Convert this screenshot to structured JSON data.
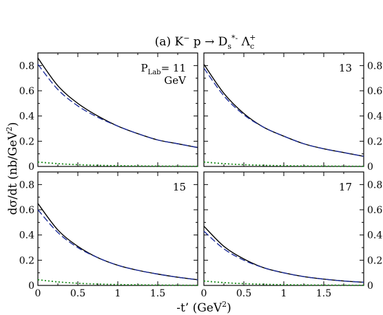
{
  "chart_data": {
    "type": "line",
    "title": {
      "prefix": "(a) K",
      "sup1": "−",
      "mid": " p → D",
      "sub1": "s",
      "sup2": "*-",
      "mid2": " Λ",
      "sub2": "c",
      "sup3": "+"
    },
    "xlabel": {
      "main": "-t’ (GeV",
      "sup": "2",
      "close": ")"
    },
    "ylabel": {
      "main": "dσ/dt (nb/GeV",
      "sup": "2",
      "close": ")"
    },
    "xlim": [
      0,
      2
    ],
    "ylim": [
      0,
      0.9
    ],
    "x_ticks": [
      0,
      0.5,
      1,
      1.5
    ],
    "x_tick_labels": [
      "0",
      "0.5",
      "1",
      "1.5"
    ],
    "y_ticks": [
      0,
      0.2,
      0.4,
      0.6,
      0.8
    ],
    "y_tick_labels": [
      "0",
      "0.2",
      "0.4",
      "0.6",
      "0.8"
    ],
    "line_styles": {
      "total": {
        "color": "#000000",
        "dash": "solid"
      },
      "dashed": {
        "color": "#1f2f9a",
        "dash": "dashed"
      },
      "dotted": {
        "color": "#1a8a1a",
        "dash": "dotted"
      }
    },
    "panels": [
      {
        "label_prefix": "P",
        "label_sub": "Lab",
        "label_value": "= 11",
        "label_unit": "GeV",
        "x": [
          0,
          0.25,
          0.5,
          0.75,
          1,
          1.25,
          1.5,
          1.75,
          2
        ],
        "series": [
          {
            "style": "total",
            "values": [
              0.86,
              0.64,
              0.5,
              0.4,
              0.32,
              0.26,
              0.21,
              0.18,
              0.15
            ]
          },
          {
            "style": "dashed",
            "values": [
              0.81,
              0.61,
              0.48,
              0.39,
              0.32,
              0.26,
              0.21,
              0.18,
              0.15
            ]
          },
          {
            "style": "dotted",
            "values": [
              0.035,
              0.022,
              0.014,
              0.009,
              0.006,
              0.004,
              0.003,
              0.002,
              0.001
            ]
          }
        ]
      },
      {
        "label_value": "13",
        "x": [
          0,
          0.25,
          0.5,
          0.75,
          1,
          1.25,
          1.5,
          1.75,
          2
        ],
        "series": [
          {
            "style": "total",
            "values": [
              0.81,
              0.58,
              0.42,
              0.31,
              0.24,
              0.18,
              0.14,
              0.11,
              0.08
            ]
          },
          {
            "style": "dashed",
            "values": [
              0.78,
              0.56,
              0.41,
              0.31,
              0.24,
              0.18,
              0.14,
              0.11,
              0.08
            ]
          },
          {
            "style": "dotted",
            "values": [
              0.035,
              0.022,
              0.014,
              0.009,
              0.006,
              0.004,
              0.003,
              0.002,
              0.001
            ]
          }
        ]
      },
      {
        "label_value": "15",
        "x": [
          0,
          0.25,
          0.5,
          0.75,
          1,
          1.25,
          1.5,
          1.75,
          2
        ],
        "series": [
          {
            "style": "total",
            "values": [
              0.65,
              0.44,
              0.31,
              0.22,
              0.16,
              0.12,
              0.09,
              0.065,
              0.045
            ]
          },
          {
            "style": "dashed",
            "values": [
              0.6,
              0.42,
              0.3,
              0.22,
              0.16,
              0.12,
              0.09,
              0.065,
              0.045
            ]
          },
          {
            "style": "dotted",
            "values": [
              0.045,
              0.028,
              0.017,
              0.011,
              0.007,
              0.005,
              0.003,
              0.002,
              0.001
            ]
          }
        ]
      },
      {
        "label_value": "17",
        "x": [
          0,
          0.25,
          0.5,
          0.75,
          1,
          1.25,
          1.5,
          1.75,
          2
        ],
        "series": [
          {
            "style": "total",
            "values": [
              0.47,
              0.31,
              0.21,
              0.14,
              0.1,
              0.07,
              0.05,
              0.035,
              0.025
            ]
          },
          {
            "style": "dashed",
            "values": [
              0.43,
              0.29,
              0.2,
              0.14,
              0.1,
              0.07,
              0.05,
              0.035,
              0.025
            ]
          },
          {
            "style": "dotted",
            "values": [
              0.035,
              0.022,
              0.014,
              0.009,
              0.006,
              0.004,
              0.003,
              0.002,
              0.001
            ]
          }
        ]
      }
    ]
  }
}
